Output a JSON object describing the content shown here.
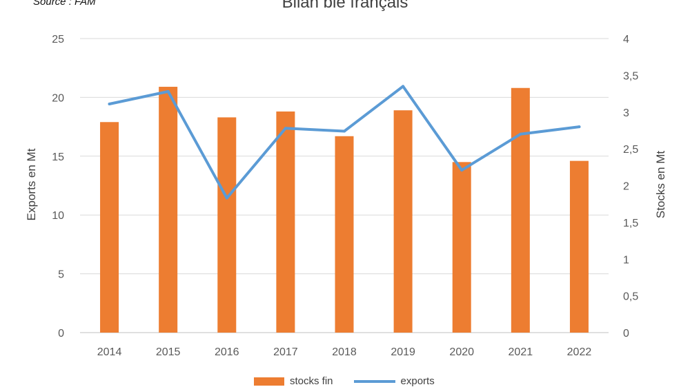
{
  "source": "Source : FAM",
  "colors": {
    "bars": "#ED7D31",
    "line": "#5B9BD5",
    "grid": "#D9D9D9"
  },
  "chart_data": {
    "type": "bar",
    "title": "Bilan blé français",
    "ylabel": "Exports en Mt",
    "y2label": "Stocks en Mt",
    "categories": [
      "2014",
      "2015",
      "2016",
      "2017",
      "2018",
      "2019",
      "2020",
      "2021",
      "2022"
    ],
    "ylim": [
      0,
      25
    ],
    "y2lim": [
      0,
      4
    ],
    "yticks": [
      "0",
      "5",
      "10",
      "15",
      "20",
      "25"
    ],
    "y2ticks": [
      "0",
      "0,5",
      "1",
      "1,5",
      "2",
      "2,5",
      "3",
      "3,5",
      "4"
    ],
    "grid": true,
    "legend_position": "bottom",
    "series": [
      {
        "name": "stocks fin",
        "kind": "bar",
        "axis": "left",
        "values": [
          17.9,
          20.9,
          18.3,
          18.8,
          16.7,
          18.9,
          14.5,
          20.8,
          14.6
        ]
      },
      {
        "name": "exports",
        "kind": "line",
        "axis": "right",
        "values": [
          3.11,
          3.28,
          1.83,
          2.78,
          2.74,
          3.35,
          2.21,
          2.7,
          2.8
        ]
      }
    ]
  }
}
